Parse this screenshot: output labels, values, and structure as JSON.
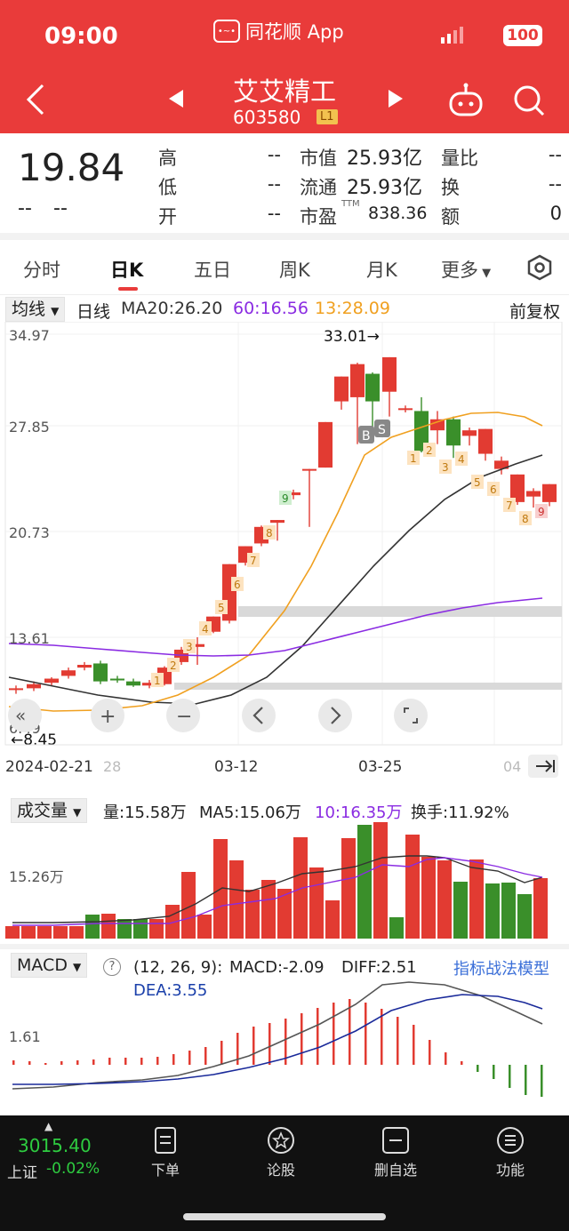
{
  "status": {
    "time": "09:00",
    "battery": "100"
  },
  "app": {
    "name": "同花顺 App"
  },
  "stock": {
    "name": "艾艾精工",
    "code": "603580",
    "level": "L1"
  },
  "quote": {
    "price": "19.84",
    "change": "--",
    "change_pct": "--",
    "high_label": "高",
    "high": "--",
    "low_label": "低",
    "low": "--",
    "open_label": "开",
    "open": "--",
    "mcap_label": "市值",
    "mcap": "25.93亿",
    "float_label": "流通",
    "float": "25.93亿",
    "pe_label": "市盈",
    "pe_sup": "TTM",
    "pe": "838.36",
    "vr_label": "量比",
    "vr": "--",
    "turn_label": "换",
    "turn": "--",
    "amt_label": "额",
    "amt": "0"
  },
  "tabs": [
    "分时",
    "日K",
    "五日",
    "周K",
    "月K",
    "更多"
  ],
  "active_tab": 1,
  "ma_bar": {
    "select": "均线",
    "period": "日线",
    "ma20": "MA20:26.20",
    "ma60": "60:16.56",
    "ma13": "13:28.09",
    "adjust": "前复权"
  },
  "kchart": {
    "y_labels": [
      "34.97",
      "27.85",
      "20.73",
      "13.61",
      "6.49"
    ],
    "high_mark": "33.01→",
    "low_mark": "←8.45",
    "dates": [
      "2024-02-21",
      "03-12",
      "03-25"
    ],
    "date_partial_left": "28",
    "date_partial_right": "04",
    "signal_b": "B",
    "signal_s": "S"
  },
  "volume": {
    "select": "成交量",
    "vol": "量:15.58万",
    "ma5": "MA5:15.06万",
    "ma10": "10:16.35万",
    "turnover": "换手:11.92%",
    "y_label": "15.26万"
  },
  "macd": {
    "select": "MACD",
    "params": "(12, 26, 9):",
    "macd": "MACD:-2.09",
    "diff": "DIFF:2.51",
    "dea": "DEA:3.55",
    "link": "指标战法模型",
    "y_label": "1.61"
  },
  "index": {
    "value": "3015.40",
    "name": "上证",
    "change": "-0.02%"
  },
  "nav": [
    "下单",
    "论股",
    "删自选",
    "功能"
  ],
  "colors": {
    "up": "#e23b32",
    "down": "#3a8f2a",
    "header": "#e93b3a",
    "ma20": "#f0a020",
    "ma60": "#8a2be2",
    "ma_dark": "#333333"
  }
}
